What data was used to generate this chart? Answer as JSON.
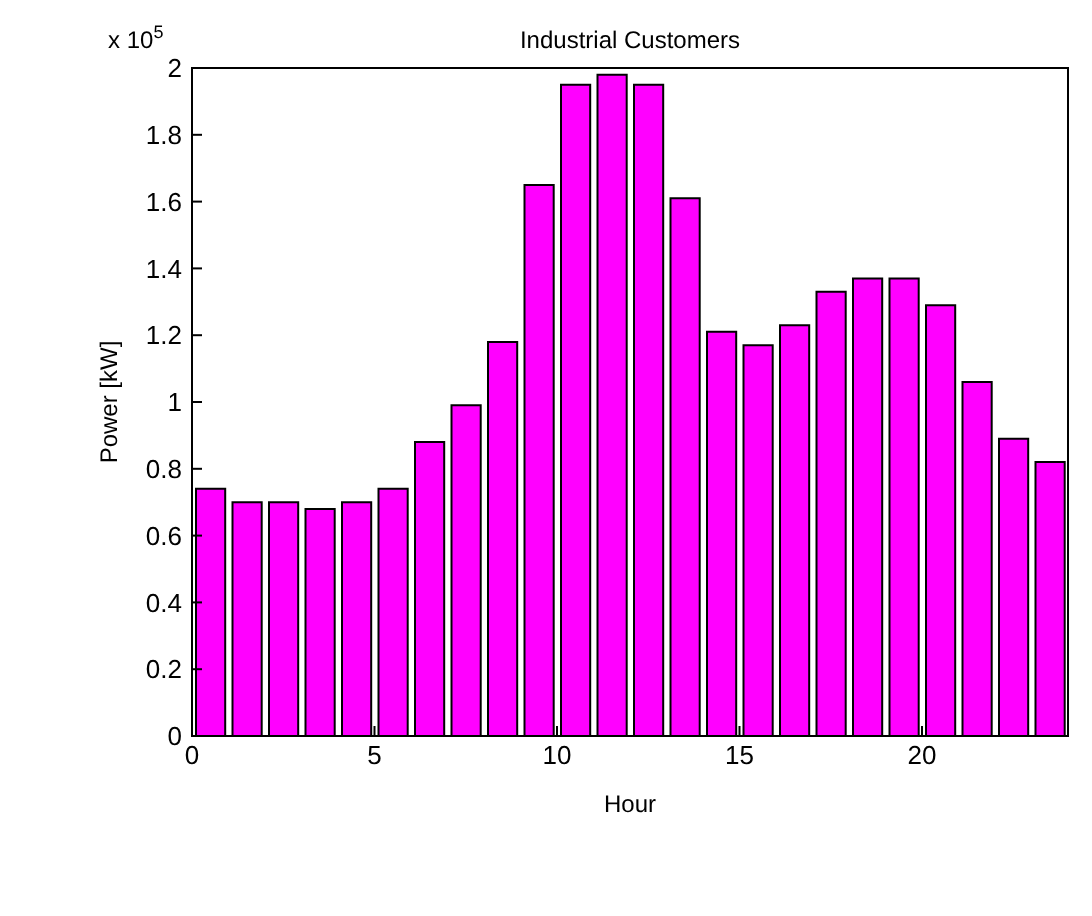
{
  "chart_data": {
    "type": "bar",
    "title": "Industrial Customers",
    "xlabel": "Hour",
    "ylabel": "Power [kW]",
    "annotations": [
      "x 10$^{5}$"
    ],
    "x": [
      0.5,
      1.5,
      2.5,
      3.5,
      4.5,
      5.5,
      6.5,
      7.5,
      8.5,
      9.5,
      10.5,
      11.5,
      12.5,
      13.5,
      14.5,
      15.5,
      16.5,
      17.5,
      18.5,
      19.5,
      20.5,
      21.5,
      22.5,
      23.5
    ],
    "values": [
      0.74,
      0.7,
      0.7,
      0.68,
      0.7,
      0.74,
      0.88,
      0.99,
      1.18,
      1.65,
      1.95,
      1.98,
      1.95,
      1.61,
      1.21,
      1.17,
      1.23,
      1.33,
      1.37,
      1.37,
      1.29,
      1.06,
      0.89,
      0.82
    ],
    "color": "#ff00ff",
    "xlim": [
      0,
      24
    ],
    "xticks": [
      0,
      5,
      10,
      15,
      20
    ],
    "ylim": [
      0,
      2
    ],
    "yticks": [
      0,
      0.2,
      0.4,
      0.6,
      0.8,
      1,
      1.2,
      1.4,
      1.6,
      1.8,
      2
    ],
    "grid": false
  }
}
